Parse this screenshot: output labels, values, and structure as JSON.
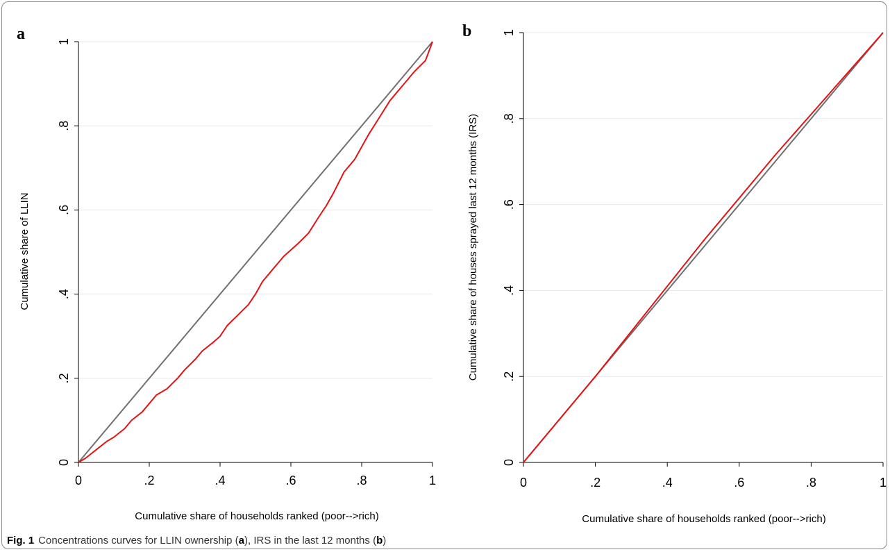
{
  "caption": {
    "figure_number": "Fig. 1",
    "text_part1": "Concentrations curves for LLIN ownership (",
    "letter_a": "a",
    "text_part2": "), IRS in the last 12 months (",
    "letter_b": "b",
    "text_part3": ")"
  },
  "chart_data": [
    {
      "panel_label": "a",
      "type": "line",
      "xlabel": "Cumulative share of households ranked (poor-->rich)",
      "ylabel": "Cumulative share of LLIN",
      "xlim": [
        0,
        1
      ],
      "ylim": [
        0,
        1
      ],
      "x_ticks": [
        "0",
        ".2",
        ".4",
        ".6",
        ".8",
        "1"
      ],
      "y_ticks": [
        "0",
        ".2",
        ".4",
        ".6",
        ".8",
        "1"
      ],
      "grid": "horizontal",
      "colors": {
        "curve": "#e01414",
        "equality": "#707070",
        "grid": "#e8e8e8"
      },
      "series": [
        {
          "role": "equality",
          "x": [
            0,
            1
          ],
          "y": [
            0,
            1
          ]
        },
        {
          "role": "curve",
          "x": [
            0,
            0.02,
            0.05,
            0.08,
            0.1,
            0.13,
            0.15,
            0.18,
            0.2,
            0.22,
            0.25,
            0.28,
            0.3,
            0.33,
            0.35,
            0.38,
            0.4,
            0.42,
            0.45,
            0.48,
            0.5,
            0.52,
            0.55,
            0.58,
            0.6,
            0.62,
            0.65,
            0.68,
            0.7,
            0.72,
            0.75,
            0.78,
            0.8,
            0.82,
            0.85,
            0.88,
            0.9,
            0.92,
            0.95,
            0.98,
            1.0
          ],
          "y": [
            0,
            0.01,
            0.03,
            0.05,
            0.06,
            0.08,
            0.1,
            0.12,
            0.14,
            0.16,
            0.175,
            0.2,
            0.22,
            0.245,
            0.265,
            0.285,
            0.3,
            0.325,
            0.35,
            0.375,
            0.4,
            0.43,
            0.46,
            0.49,
            0.505,
            0.52,
            0.545,
            0.585,
            0.61,
            0.64,
            0.69,
            0.72,
            0.75,
            0.78,
            0.82,
            0.86,
            0.88,
            0.9,
            0.93,
            0.955,
            1.0
          ]
        }
      ]
    },
    {
      "panel_label": "b",
      "type": "line",
      "xlabel": "Cumulative share of households ranked (poor-->rich)",
      "ylabel": "Cumulative share of houses sprayed last 12 months (IRS)",
      "xlim": [
        0,
        1
      ],
      "ylim": [
        0,
        1
      ],
      "x_ticks": [
        "0",
        ".2",
        ".4",
        ".6",
        ".8",
        "1"
      ],
      "y_ticks": [
        "0",
        ".2",
        ".4",
        ".6",
        ".8",
        "1"
      ],
      "grid": "horizontal",
      "colors": {
        "curve": "#e01414",
        "equality": "#707070",
        "grid": "#e8e8e8"
      },
      "series": [
        {
          "role": "equality",
          "x": [
            0,
            1
          ],
          "y": [
            0,
            1
          ]
        },
        {
          "role": "curve",
          "x": [
            0,
            0.1,
            0.2,
            0.3,
            0.4,
            0.5,
            0.6,
            0.7,
            0.8,
            0.9,
            1.0
          ],
          "y": [
            0,
            0.1,
            0.2,
            0.305,
            0.41,
            0.515,
            0.615,
            0.715,
            0.81,
            0.905,
            1.0
          ]
        }
      ]
    }
  ]
}
